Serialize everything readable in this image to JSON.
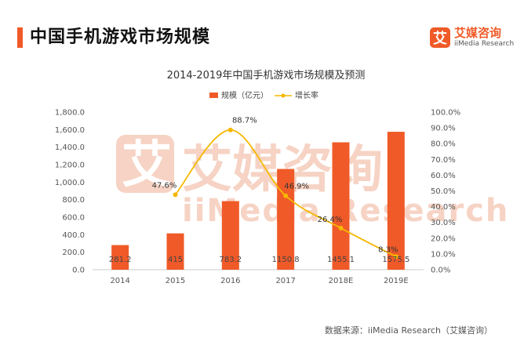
{
  "header": {
    "title": "中国手机游戏市场规模"
  },
  "logo": {
    "mark": "艾",
    "name_cn": "艾媒咨询",
    "name_en": "iiMedia Research"
  },
  "watermark": {
    "cn": "艾媒咨询",
    "en": "iiMedia Research"
  },
  "footer": {
    "source": "数据来源：iiMedia Research（艾媒咨询）"
  },
  "colors": {
    "accent": "#f05a28",
    "bar": "#f05a28",
    "line": "#f5b800"
  },
  "chart_data": {
    "type": "bar",
    "title": "2014-2019年中国手机游戏市场规模及预测",
    "categories": [
      "2014",
      "2015",
      "2016",
      "2017",
      "2018E",
      "2019E"
    ],
    "series": [
      {
        "name": "规模（亿元）",
        "type": "bar",
        "axis": "left",
        "values": [
          281.2,
          415,
          783.2,
          1150.8,
          1455.1,
          1575.5
        ],
        "labels": [
          "281.2",
          "415",
          "783.2",
          "1150.8",
          "1455.1",
          "1575.5"
        ]
      },
      {
        "name": "增长率",
        "type": "line",
        "axis": "right",
        "x": [
          "2015",
          "2016",
          "2017",
          "2018E",
          "2019E"
        ],
        "values": [
          47.6,
          88.7,
          46.9,
          26.4,
          8.3
        ],
        "labels": [
          "47.6%",
          "88.7%",
          "46.9%",
          "26.4%",
          "8.3%"
        ]
      }
    ],
    "yleft": {
      "lim": [
        0,
        1800
      ],
      "ticks": [
        "0.0",
        "200.0",
        "400.0",
        "600.0",
        "800.0",
        "1,000.0",
        "1,200.0",
        "1,400.0",
        "1,600.0",
        "1,800.0"
      ]
    },
    "yright": {
      "lim": [
        0,
        100
      ],
      "ticks": [
        "0.0%",
        "10.0%",
        "20.0%",
        "30.0%",
        "40.0%",
        "50.0%",
        "60.0%",
        "70.0%",
        "80.0%",
        "90.0%",
        "100.0%"
      ]
    },
    "legend_position": "top-center",
    "grid": false
  }
}
